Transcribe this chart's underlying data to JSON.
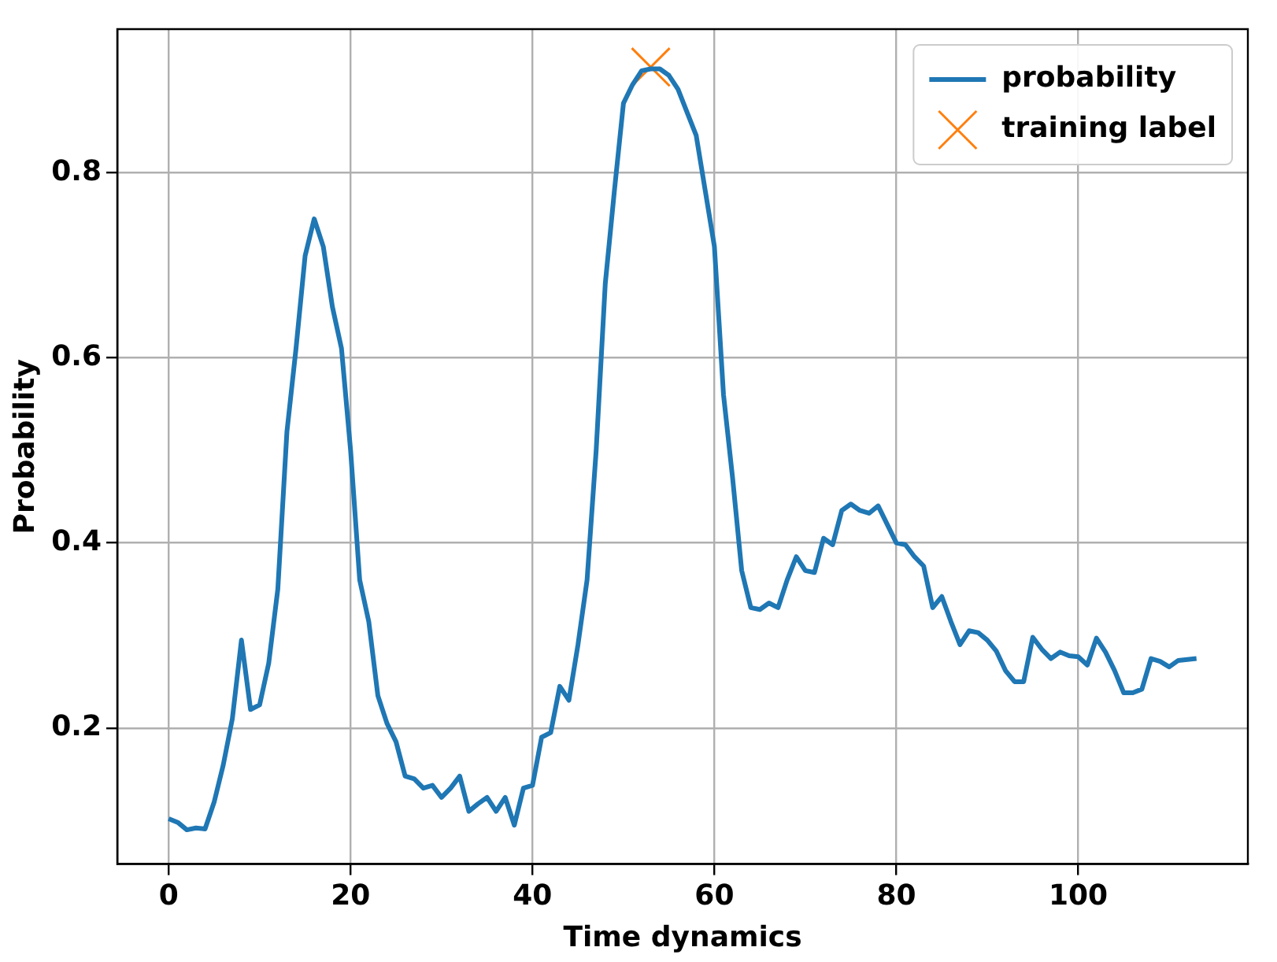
{
  "chart_data": {
    "type": "line",
    "xlabel": "Time dynamics",
    "ylabel": "Probability",
    "xlim": [
      -5.65,
      118.65
    ],
    "ylim": [
      0.053,
      0.955
    ],
    "xticks": [
      0,
      20,
      40,
      60,
      80,
      100
    ],
    "yticks": [
      {
        "value": 0.2,
        "label": "0.2"
      },
      {
        "value": 0.4,
        "label": "0.4"
      },
      {
        "value": 0.6,
        "label": "0.6"
      },
      {
        "value": 0.8,
        "label": "0.8"
      }
    ],
    "grid": true,
    "legend": "top right",
    "series": [
      {
        "name": "probability",
        "color": "#1f77b4",
        "marker": "none",
        "line_style": "solid",
        "x": [
          0,
          1,
          2,
          3,
          4,
          5,
          6,
          7,
          8,
          9,
          10,
          11,
          12,
          13,
          14,
          15,
          16,
          17,
          18,
          19,
          20,
          21,
          22,
          23,
          24,
          25,
          26,
          27,
          28,
          29,
          30,
          31,
          32,
          33,
          34,
          35,
          36,
          37,
          38,
          39,
          40,
          41,
          42,
          43,
          44,
          45,
          46,
          47,
          48,
          49,
          50,
          51,
          52,
          53,
          54,
          55,
          56,
          57,
          58,
          59,
          60,
          61,
          62,
          63,
          64,
          65,
          66,
          67,
          68,
          69,
          70,
          71,
          72,
          73,
          74,
          75,
          76,
          77,
          78,
          79,
          80,
          81,
          82,
          83,
          84,
          85,
          86,
          87,
          88,
          89,
          90,
          91,
          92,
          93,
          94,
          95,
          96,
          97,
          98,
          99,
          100,
          101,
          102,
          103,
          104,
          105,
          106,
          107,
          108,
          109,
          110,
          111,
          112,
          113
        ],
        "values": [
          0.102,
          0.098,
          0.09,
          0.092,
          0.091,
          0.12,
          0.16,
          0.21,
          0.295,
          0.22,
          0.225,
          0.27,
          0.35,
          0.52,
          0.61,
          0.71,
          0.75,
          0.72,
          0.655,
          0.61,
          0.5,
          0.36,
          0.315,
          0.235,
          0.205,
          0.185,
          0.148,
          0.145,
          0.135,
          0.138,
          0.125,
          0.135,
          0.148,
          0.11,
          0.118,
          0.125,
          0.11,
          0.125,
          0.095,
          0.135,
          0.138,
          0.19,
          0.195,
          0.245,
          0.23,
          0.29,
          0.36,
          0.5,
          0.68,
          0.78,
          0.875,
          0.895,
          0.91,
          0.912,
          0.912,
          0.905,
          0.89,
          0.865,
          0.84,
          0.78,
          0.72,
          0.56,
          0.47,
          0.37,
          0.33,
          0.328,
          0.335,
          0.33,
          0.36,
          0.385,
          0.37,
          0.368,
          0.405,
          0.398,
          0.435,
          0.442,
          0.435,
          0.432,
          0.44,
          0.42,
          0.4,
          0.398,
          0.385,
          0.375,
          0.33,
          0.342,
          0.315,
          0.29,
          0.305,
          0.303,
          0.295,
          0.283,
          0.262,
          0.25,
          0.25,
          0.298,
          0.285,
          0.275,
          0.282,
          0.278,
          0.277,
          0.268,
          0.297,
          0.282,
          0.262,
          0.238,
          0.238,
          0.242,
          0.275,
          0.272,
          0.266,
          0.273,
          0.274,
          0.275
        ]
      },
      {
        "name": "training label",
        "type": "scatter",
        "color": "#ff7f0e",
        "marker": "cross",
        "x": [
          53
        ],
        "values": [
          0.914
        ]
      }
    ]
  }
}
